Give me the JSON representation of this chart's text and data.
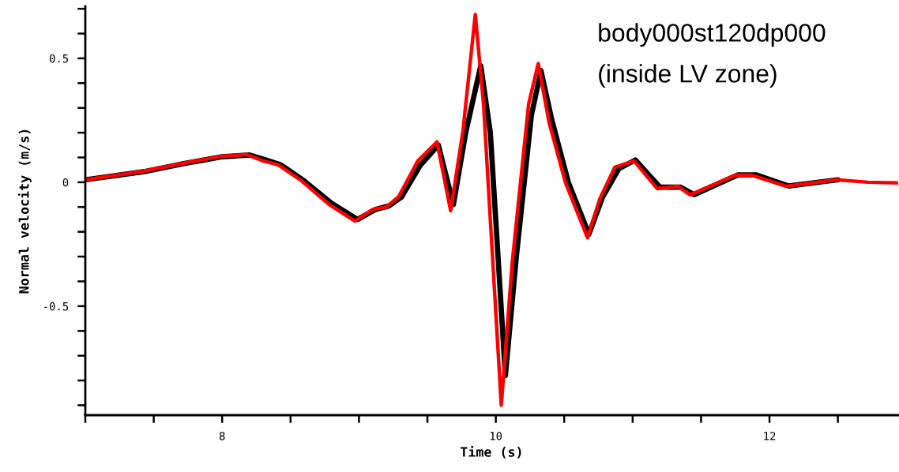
{
  "chart_data": {
    "type": "line",
    "xlabel": "Time (s)",
    "ylabel": "Normal velocity (m/s)",
    "annotations": [
      "body000st120dp000",
      "(inside LV zone)"
    ],
    "xlim": [
      7,
      12.94
    ],
    "ylim": [
      -0.94,
      0.71
    ],
    "xticks": [
      {
        "value": 7,
        "label": null
      },
      {
        "value": 7.5,
        "label": null
      },
      8,
      {
        "value": 8.5,
        "label": null
      },
      {
        "value": 9,
        "label": null
      },
      {
        "value": 9.5,
        "label": null
      },
      10,
      {
        "value": 10.5,
        "label": null
      },
      {
        "value": 11,
        "label": null
      },
      {
        "value": 11.5,
        "label": null
      },
      12,
      {
        "value": 12.5,
        "label": null
      }
    ],
    "yticks": [
      {
        "value": -0.9,
        "label": null
      },
      {
        "value": -0.8,
        "label": null
      },
      {
        "value": -0.7,
        "label": null
      },
      {
        "value": -0.6,
        "label": null
      },
      -0.5,
      {
        "value": -0.4,
        "label": null
      },
      {
        "value": -0.3,
        "label": null
      },
      {
        "value": -0.2,
        "label": null
      },
      {
        "value": -0.1,
        "label": null
      },
      0,
      {
        "value": 0.1,
        "label": null
      },
      {
        "value": 0.2,
        "label": null
      },
      {
        "value": 0.3,
        "label": null
      },
      {
        "value": 0.4,
        "label": null
      },
      0.5,
      {
        "value": 0.6,
        "label": null
      },
      {
        "value": 0.7,
        "label": null
      }
    ],
    "grid": false,
    "legend": false,
    "marker": "none",
    "line_style": "solid",
    "series": [
      {
        "color": "#000000",
        "x": [
          7.0,
          7.43,
          7.72,
          8.0,
          8.2,
          8.32,
          8.43,
          8.6,
          8.8,
          8.99,
          9.12,
          9.22,
          9.31,
          9.45,
          9.58,
          9.69,
          9.78,
          9.89,
          9.96,
          10.07,
          10.15,
          10.26,
          10.33,
          10.41,
          10.53,
          10.68,
          10.78,
          10.9,
          11.02,
          11.2,
          11.35,
          11.45,
          11.77,
          11.9,
          12.14,
          12.5
        ],
        "values": [
          0.01,
          0.043,
          0.075,
          0.103,
          0.11,
          0.09,
          0.07,
          0.005,
          -0.085,
          -0.15,
          -0.11,
          -0.095,
          -0.06,
          0.07,
          0.15,
          -0.09,
          0.2,
          0.47,
          0.2,
          -0.78,
          -0.3,
          0.27,
          0.45,
          0.25,
          0.0,
          -0.21,
          -0.06,
          0.055,
          0.09,
          -0.02,
          -0.02,
          -0.05,
          0.03,
          0.03,
          -0.015,
          0.01
        ]
      },
      {
        "color": "#ff0000",
        "x": [
          7.0,
          7.43,
          7.72,
          8.0,
          8.18,
          8.3,
          8.41,
          8.58,
          8.78,
          8.97,
          9.1,
          9.2,
          9.29,
          9.43,
          9.57,
          9.67,
          9.76,
          9.85,
          9.91,
          10.04,
          10.12,
          10.24,
          10.31,
          10.39,
          10.51,
          10.67,
          10.76,
          10.87,
          11.01,
          11.18,
          11.33,
          11.42,
          11.75,
          11.87,
          12.12,
          12.49,
          12.72,
          12.94
        ],
        "values": [
          0.01,
          0.045,
          0.077,
          0.105,
          0.112,
          0.086,
          0.07,
          0.006,
          -0.089,
          -0.157,
          -0.11,
          -0.1,
          -0.058,
          0.086,
          0.163,
          -0.115,
          0.208,
          0.677,
          0.316,
          -0.9,
          -0.323,
          0.316,
          0.479,
          0.24,
          -0.003,
          -0.224,
          -0.067,
          0.061,
          0.086,
          -0.026,
          -0.016,
          -0.051,
          0.029,
          0.029,
          -0.016,
          0.01,
          0.0,
          -0.003
        ]
      }
    ]
  }
}
